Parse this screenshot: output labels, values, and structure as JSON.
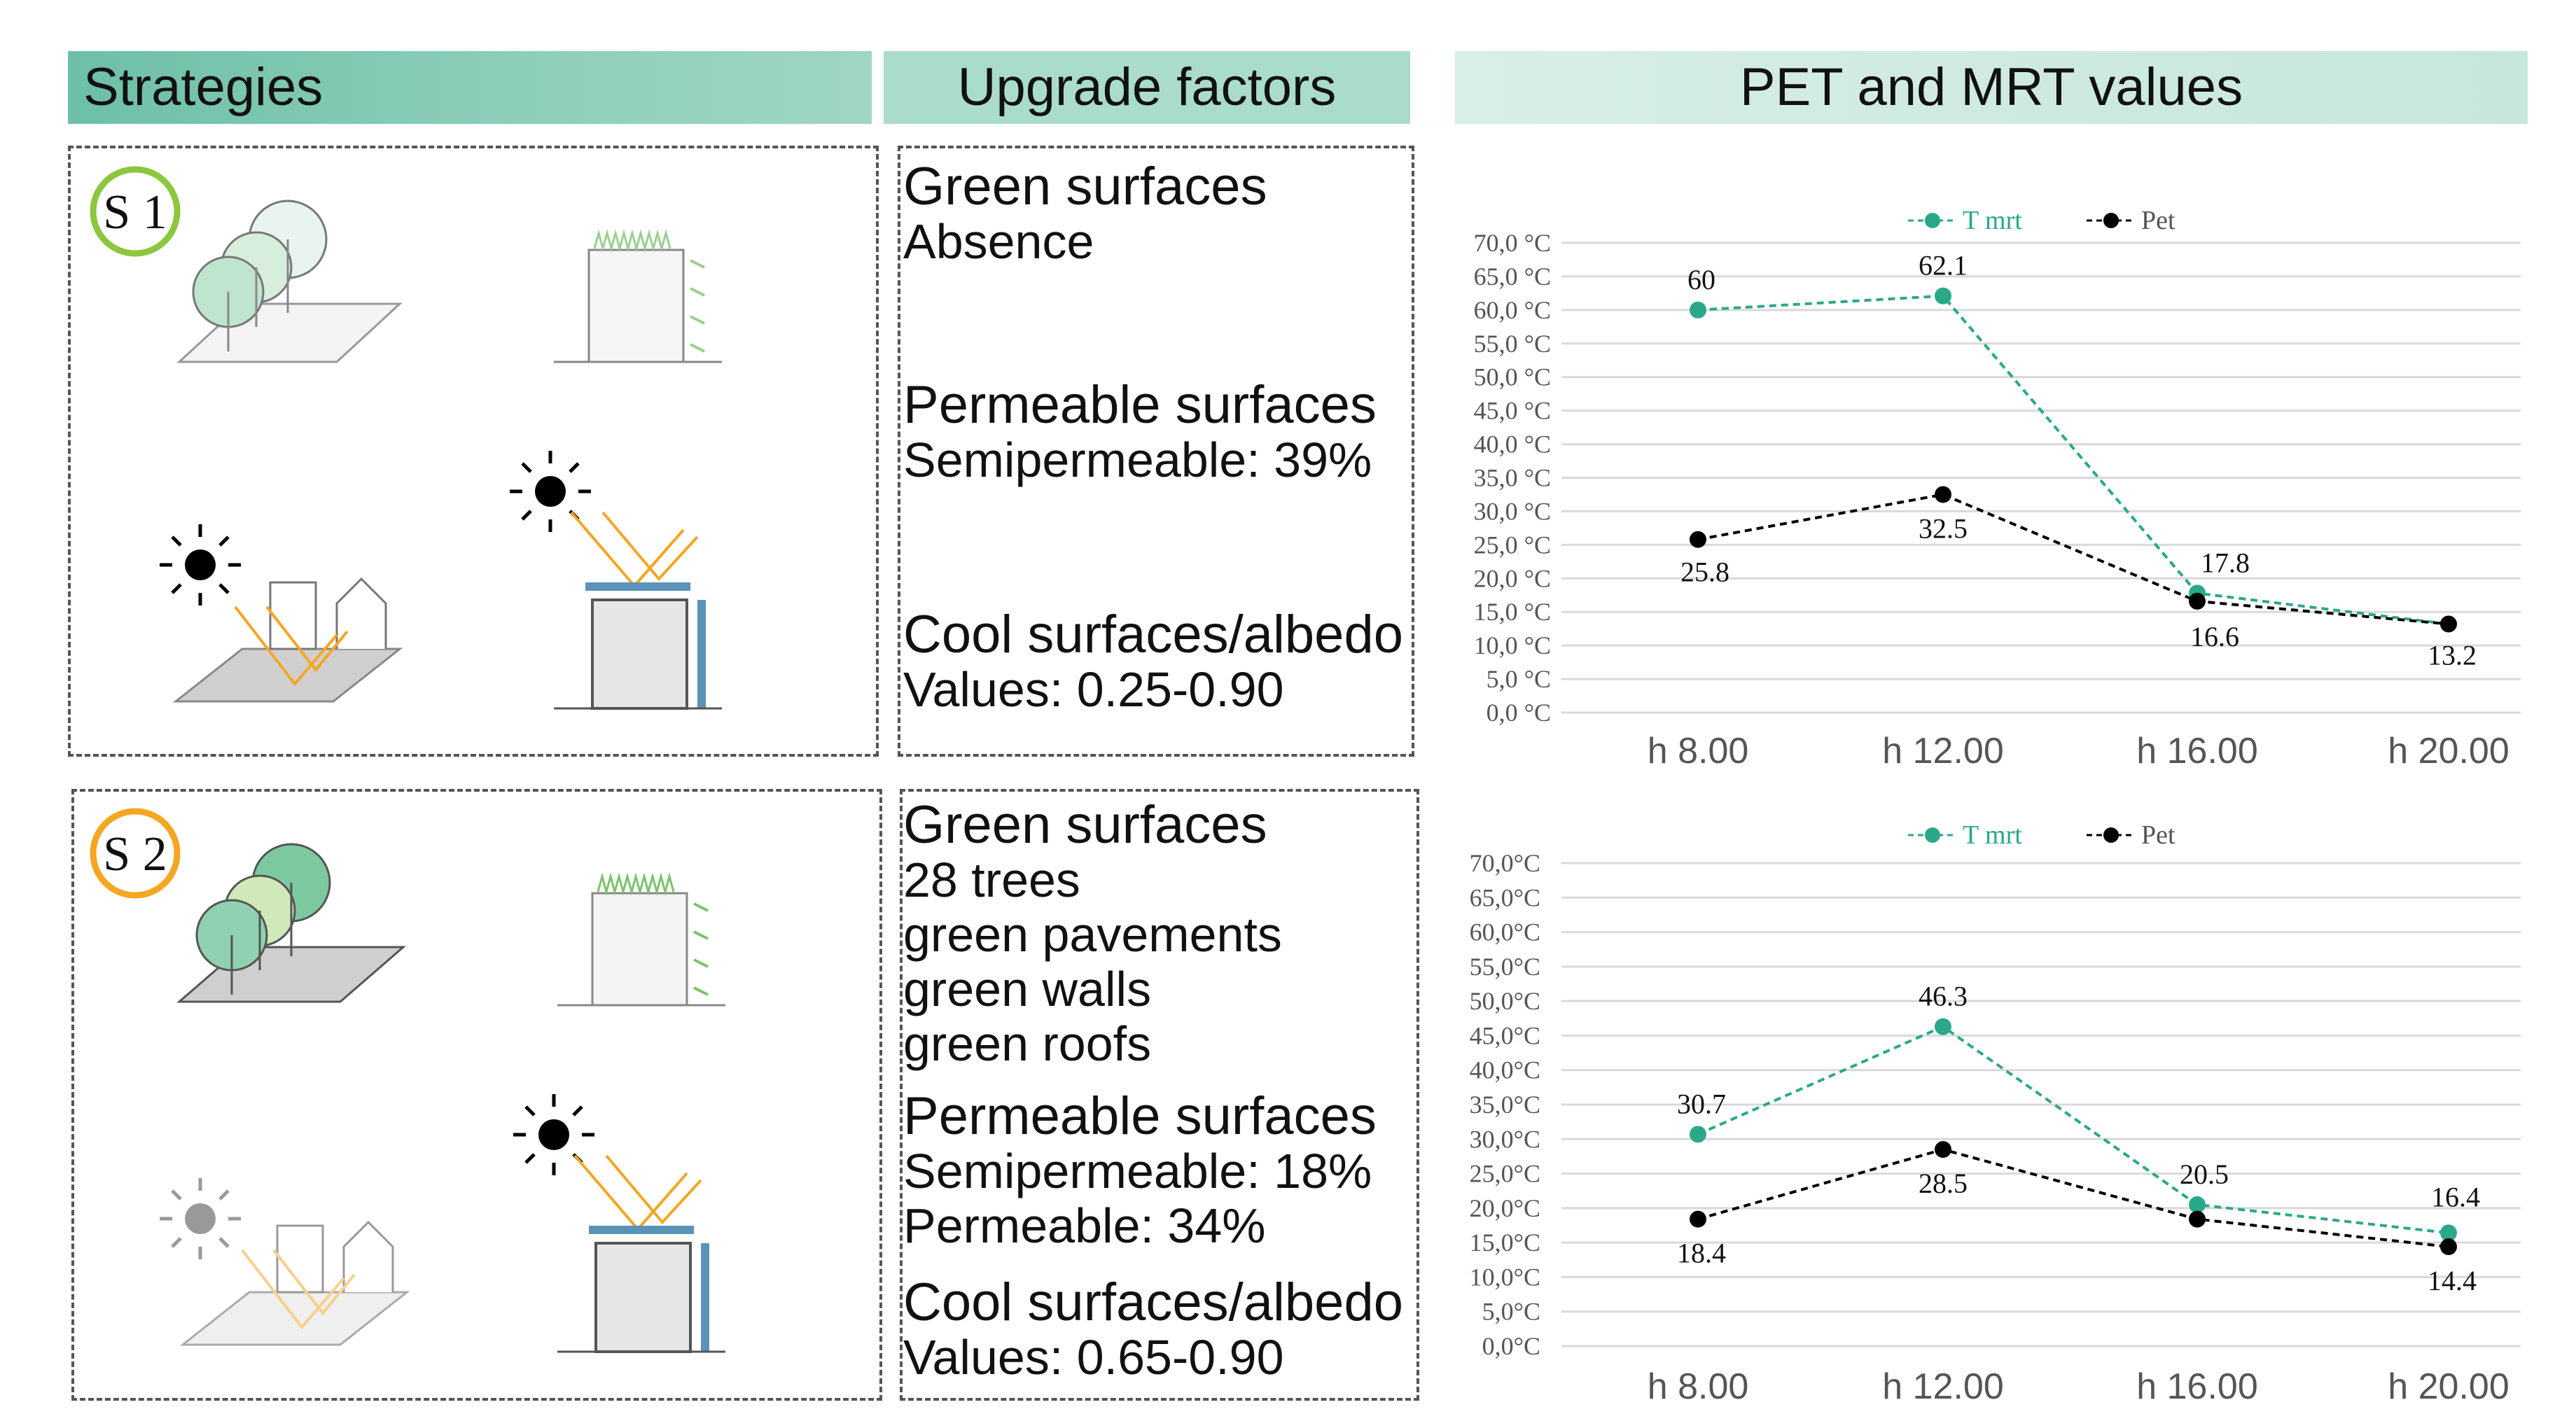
{
  "headers": {
    "strategies": "Strategies",
    "upgrade_factors": "Upgrade factors",
    "pet_mrt": "PET and MRT values"
  },
  "colors": {
    "header_green": "#6ebfa8",
    "header_mid": "#a9dccb",
    "header_light": "#d8efe6",
    "tmrt_series": "#2aa88a",
    "pet_series": "#000000",
    "s1_badge": "#8dc63f",
    "s2_badge": "#f5a623",
    "sun_ray": "#f5a623",
    "roof_blue": "#5b93b8"
  },
  "strategies": [
    {
      "badge": "S 1",
      "upgrades": [
        {
          "title": "Green surfaces",
          "lines": [
            "Absence"
          ]
        },
        {
          "title": "Permeable surfaces",
          "lines": [
            "Semipermeable: 39%"
          ]
        },
        {
          "title": "Cool surfaces/albedo",
          "lines": [
            "Values: 0.25-0.90"
          ]
        }
      ]
    },
    {
      "badge": "S 2",
      "upgrades": [
        {
          "title": "Green surfaces",
          "lines": [
            "28 trees",
            "green pavements",
            "green walls",
            "green roofs"
          ]
        },
        {
          "title": "Permeable surfaces",
          "lines": [
            "Semipermeable: 18%",
            "Permeable: 34%"
          ]
        },
        {
          "title": "Cool surfaces/albedo",
          "lines": [
            "Values: 0.65-0.90"
          ]
        }
      ]
    }
  ],
  "chart_data": [
    {
      "type": "line",
      "title": "",
      "categories": [
        "h 8.00",
        "h 12.00",
        "h 16.00",
        "h 20.00"
      ],
      "yticks": [
        "0,0 °C",
        "5,0 °C",
        "10,0 °C",
        "15,0 °C",
        "20,0 °C",
        "25,0 °C",
        "30,0 °C",
        "35,0 °C",
        "40,0 °C",
        "45,0 °C",
        "50,0 °C",
        "55,0 °C",
        "60,0 °C",
        "65,0 °C",
        "70,0 °C"
      ],
      "ylim": [
        0,
        70
      ],
      "legend_position": "top-center",
      "series": [
        {
          "name": "T mrt",
          "values": [
            60,
            62.1,
            17.8,
            13.2
          ],
          "labels": [
            "60",
            "62.1",
            "17.8",
            ""
          ]
        },
        {
          "name": "Pet",
          "values": [
            25.8,
            32.5,
            16.6,
            13.2
          ],
          "labels": [
            "25.8",
            "32.5",
            "16.6",
            "13.2"
          ]
        }
      ]
    },
    {
      "type": "line",
      "title": "",
      "categories": [
        "h 8.00",
        "h 12.00",
        "h 16.00",
        "h 20.00"
      ],
      "yticks": [
        "0,0°C",
        "5,0°C",
        "10,0°C",
        "15,0°C",
        "20,0°C",
        "25,0°C",
        "30,0°C",
        "35,0°C",
        "40,0°C",
        "45,0°C",
        "50,0°C",
        "55,0°C",
        "60,0°C",
        "65,0°C",
        "70,0°C"
      ],
      "ylim": [
        0,
        70
      ],
      "legend_position": "top-center",
      "series": [
        {
          "name": "T mrt",
          "values": [
            30.7,
            46.3,
            20.5,
            16.4
          ],
          "labels": [
            "30.7",
            "46.3",
            "20.5",
            "16.4"
          ]
        },
        {
          "name": "Pet",
          "values": [
            18.4,
            28.5,
            18.4,
            14.4
          ],
          "labels": [
            "18.4",
            "28.5",
            "",
            "14.4"
          ]
        }
      ]
    }
  ]
}
